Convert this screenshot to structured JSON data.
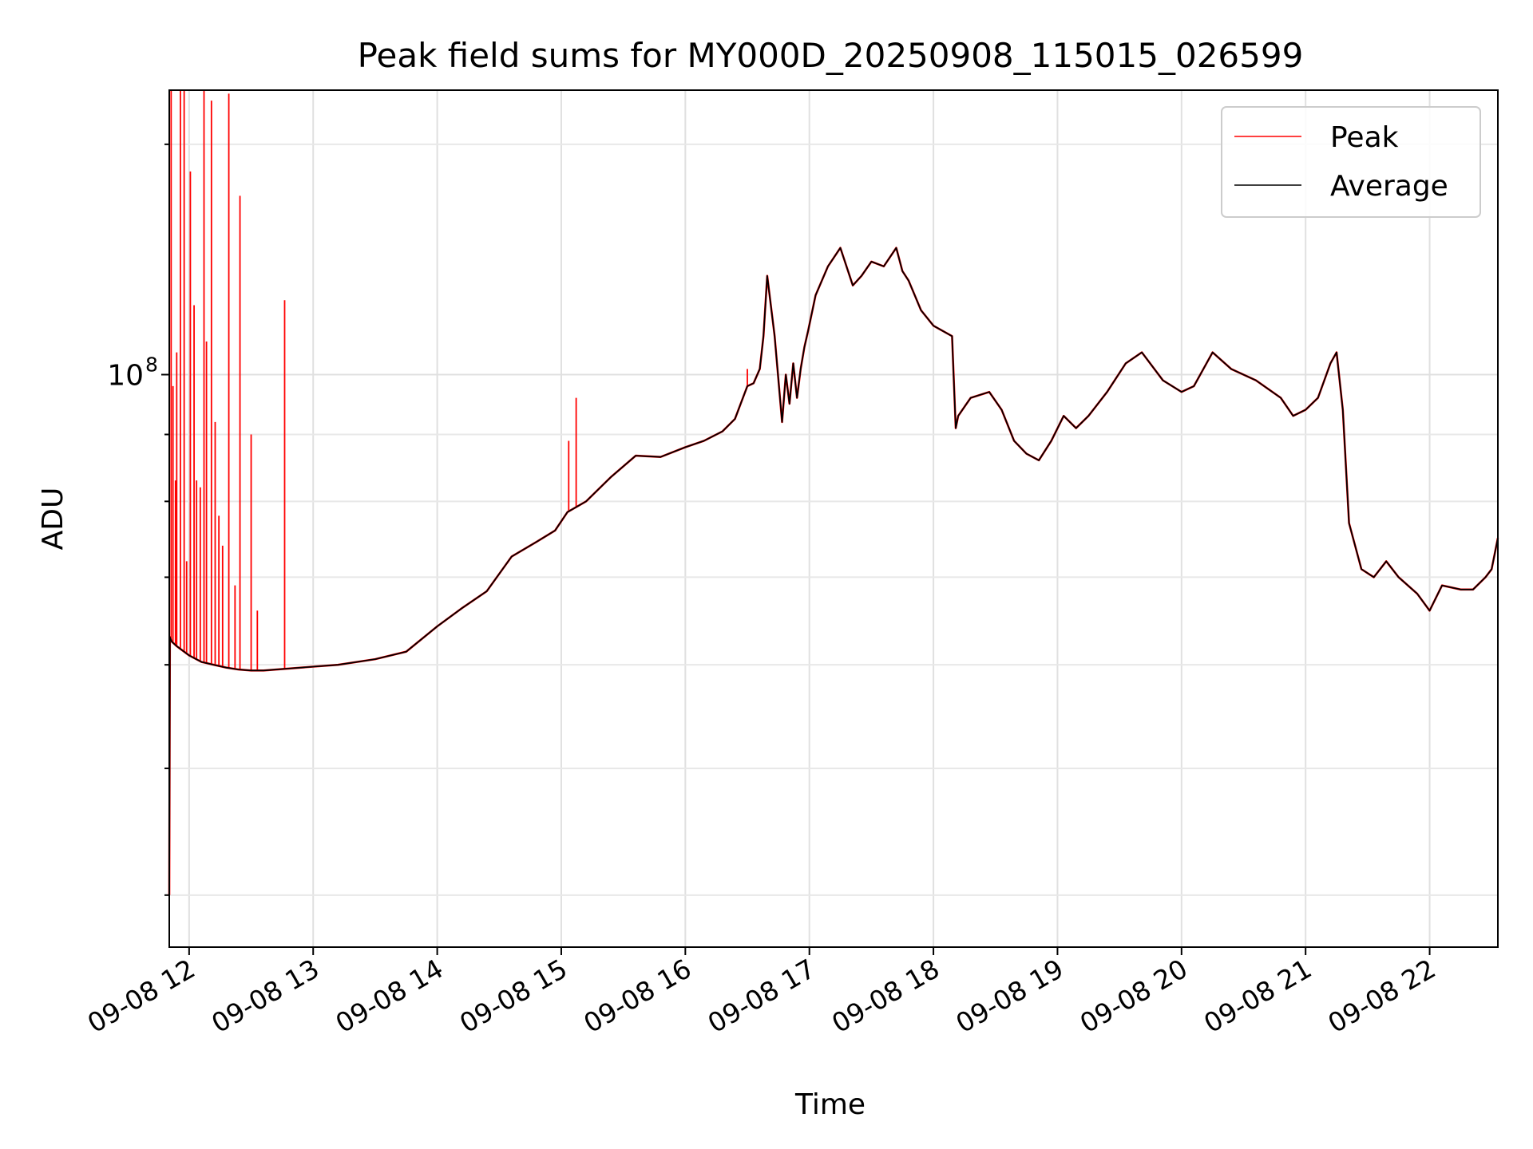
{
  "chart_data": {
    "type": "line",
    "title": "Peak field sums for MY000D_20250908_115015_026599",
    "xlabel": "Time",
    "ylabel": "ADU",
    "yscale": "log",
    "xlim_hours": [
      11.84,
      22.55
    ],
    "ylim": [
      36500000,
      165000000
    ],
    "grid": true,
    "legend_position": "top-right",
    "y_major_tick": {
      "value": 100000000,
      "label_base": "10",
      "label_exp": "8"
    },
    "y_minor_ticks": [
      40000000,
      50000000,
      60000000,
      70000000,
      80000000,
      90000000,
      150000000
    ],
    "x_ticks": [
      {
        "hour": 12,
        "label": "09-08 12"
      },
      {
        "hour": 13,
        "label": "09-08 13"
      },
      {
        "hour": 14,
        "label": "09-08 14"
      },
      {
        "hour": 15,
        "label": "09-08 15"
      },
      {
        "hour": 16,
        "label": "09-08 16"
      },
      {
        "hour": 17,
        "label": "09-08 17"
      },
      {
        "hour": 18,
        "label": "09-08 18"
      },
      {
        "hour": 19,
        "label": "09-08 19"
      },
      {
        "hour": 20,
        "label": "09-08 20"
      },
      {
        "hour": 21,
        "label": "09-08 21"
      },
      {
        "hour": 22,
        "label": "09-08 22"
      }
    ],
    "series": [
      {
        "name": "Peak",
        "color": "#ff0000",
        "note": "follows Average except spikes",
        "spikes": [
          {
            "x": 11.855,
            "y": 165000000
          },
          {
            "x": 11.87,
            "y": 98000000
          },
          {
            "x": 11.89,
            "y": 83000000
          },
          {
            "x": 11.9,
            "y": 104000000
          },
          {
            "x": 11.93,
            "y": 165000000
          },
          {
            "x": 11.96,
            "y": 165000000
          },
          {
            "x": 11.98,
            "y": 72000000
          },
          {
            "x": 12.01,
            "y": 143000000
          },
          {
            "x": 12.04,
            "y": 113000000
          },
          {
            "x": 12.06,
            "y": 83000000
          },
          {
            "x": 12.09,
            "y": 82000000
          },
          {
            "x": 12.12,
            "y": 165000000
          },
          {
            "x": 12.14,
            "y": 106000000
          },
          {
            "x": 12.18,
            "y": 162000000
          },
          {
            "x": 12.21,
            "y": 92000000
          },
          {
            "x": 12.24,
            "y": 78000000
          },
          {
            "x": 12.27,
            "y": 74000000
          },
          {
            "x": 12.32,
            "y": 164000000
          },
          {
            "x": 12.37,
            "y": 69000000
          },
          {
            "x": 12.41,
            "y": 137000000
          },
          {
            "x": 12.5,
            "y": 90000000
          },
          {
            "x": 12.55,
            "y": 66000000
          },
          {
            "x": 12.77,
            "y": 114000000
          },
          {
            "x": 15.06,
            "y": 89000000
          },
          {
            "x": 15.12,
            "y": 96000000
          },
          {
            "x": 16.5,
            "y": 101000000
          }
        ]
      },
      {
        "name": "Average",
        "color": "#000000",
        "x": [
          11.84,
          11.845,
          11.86,
          11.9,
          12.0,
          12.1,
          12.2,
          12.3,
          12.4,
          12.5,
          12.6,
          12.8,
          13.0,
          13.2,
          13.5,
          13.75,
          14.0,
          14.2,
          14.4,
          14.6,
          14.8,
          14.95,
          15.05,
          15.2,
          15.4,
          15.6,
          15.8,
          16.0,
          16.15,
          16.3,
          16.4,
          16.5,
          16.55,
          16.6,
          16.63,
          16.66,
          16.72,
          16.78,
          16.81,
          16.84,
          16.87,
          16.9,
          16.93,
          16.96,
          16.99,
          17.05,
          17.15,
          17.25,
          17.35,
          17.42,
          17.5,
          17.6,
          17.7,
          17.75,
          17.8,
          17.9,
          18.0,
          18.15,
          18.18,
          18.2,
          18.3,
          18.45,
          18.55,
          18.65,
          18.75,
          18.85,
          18.95,
          19.05,
          19.15,
          19.25,
          19.4,
          19.55,
          19.68,
          19.85,
          20.0,
          20.1,
          20.25,
          20.4,
          20.6,
          20.8,
          20.9,
          21.0,
          21.1,
          21.2,
          21.25,
          21.3,
          21.35,
          21.45,
          21.55,
          21.65,
          21.75,
          21.9,
          22.0,
          22.1,
          22.25,
          22.35,
          22.45,
          22.5,
          22.55
        ],
        "y": [
          40000000,
          63000000,
          62500000,
          62000000,
          61000000,
          60300000,
          60000000,
          59700000,
          59500000,
          59400000,
          59400000,
          59600000,
          59800000,
          60000000,
          60600000,
          61400000,
          64200000,
          66300000,
          68300000,
          72600000,
          74500000,
          76000000,
          78500000,
          80000000,
          83500000,
          86700000,
          86500000,
          88000000,
          89000000,
          90500000,
          92500000,
          98000000,
          98500000,
          101000000,
          107000000,
          119000000,
          107000000,
          92000000,
          100000000,
          95000000,
          102000000,
          96000000,
          101000000,
          105000000,
          108000000,
          115000000,
          121000000,
          125000000,
          117000000,
          119000000,
          122000000,
          121000000,
          125000000,
          120000000,
          118000000,
          112000000,
          109000000,
          107000000,
          91000000,
          93000000,
          96000000,
          97000000,
          94000000,
          89000000,
          87000000,
          86000000,
          89000000,
          93000000,
          91000000,
          93000000,
          97000000,
          102000000,
          104000000,
          99000000,
          97000000,
          98000000,
          104000000,
          101000000,
          99000000,
          96000000,
          93000000,
          94000000,
          96000000,
          102000000,
          104000000,
          94000000,
          77000000,
          71000000,
          70000000,
          72000000,
          70000000,
          68000000,
          66000000,
          69000000,
          68500000,
          68500000,
          70000000,
          71000000,
          75000000
        ]
      }
    ]
  }
}
